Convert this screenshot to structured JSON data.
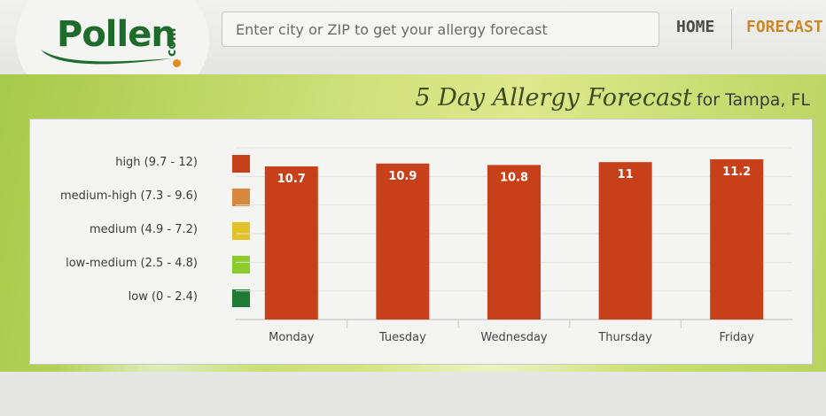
{
  "header": {
    "logo_word": "Pollen",
    "logo_suffix": "com",
    "search_placeholder": "Enter city or ZIP to get your allergy forecast",
    "nav": {
      "home": "HOME",
      "forecast": "FORECAST"
    }
  },
  "hero": {
    "title": "5 Day Allergy Forecast",
    "location": "for Tampa, FL"
  },
  "legend": [
    {
      "label": "high (9.7 - 12)",
      "color": "#c8401a"
    },
    {
      "label": "medium-high (7.3 - 9.6)",
      "color": "#d8883a"
    },
    {
      "label": "medium (4.9 - 7.2)",
      "color": "#e3c227"
    },
    {
      "label": "low-medium (2.5 - 4.8)",
      "color": "#8ccc2d"
    },
    {
      "label": "low (0 - 2.4)",
      "color": "#1d7a34"
    }
  ],
  "chart_data": {
    "type": "bar",
    "categories": [
      "Monday",
      "Tuesday",
      "Wednesday",
      "Thursday",
      "Friday"
    ],
    "values": [
      10.7,
      10.9,
      10.8,
      11,
      11.2
    ],
    "value_labels": [
      "10.7",
      "10.9",
      "10.8",
      "11",
      "11.2"
    ],
    "bar_color": "#c8401a",
    "ylim": [
      0,
      12
    ],
    "grid": true
  }
}
